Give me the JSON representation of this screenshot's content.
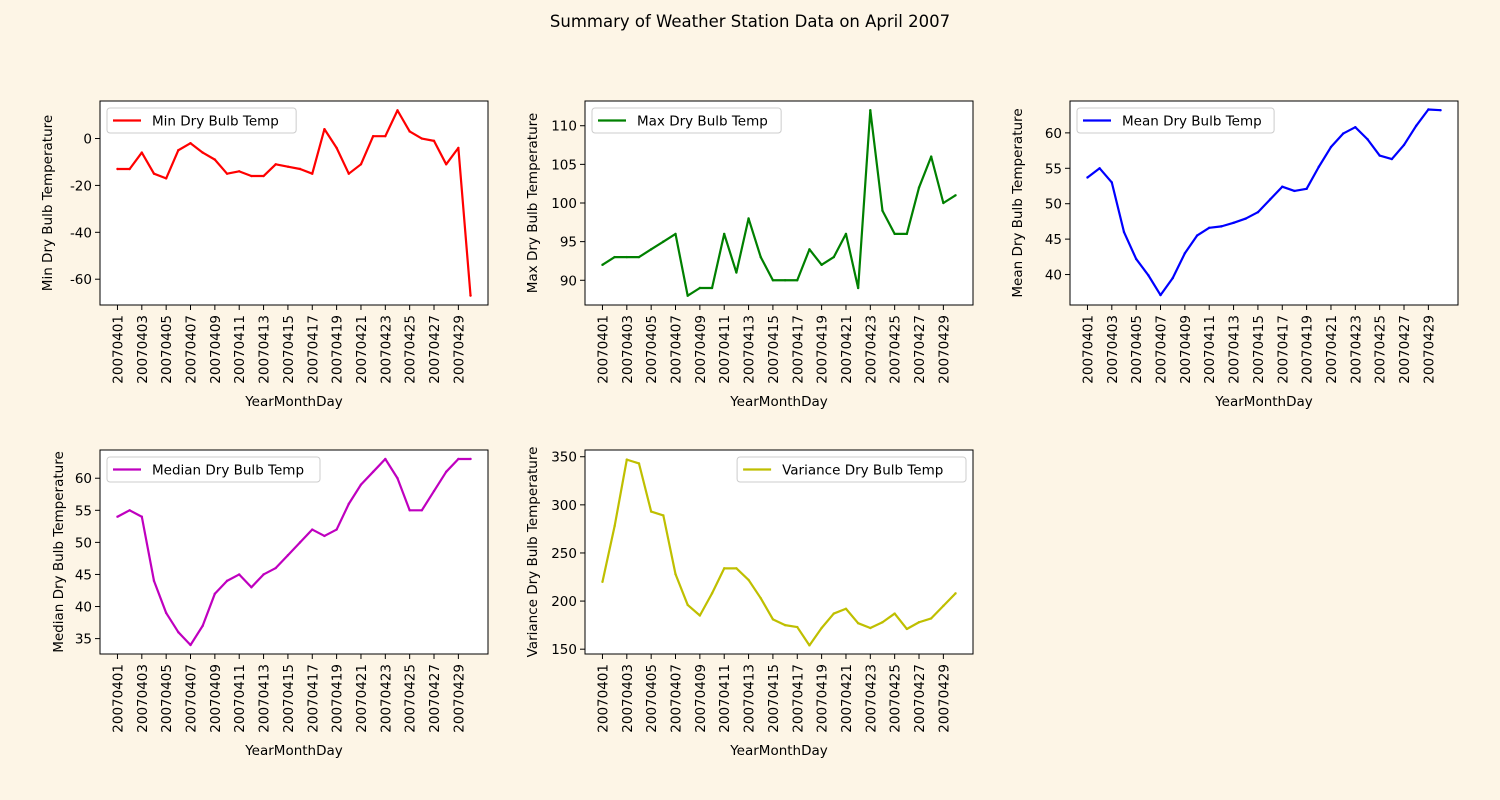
{
  "figure": {
    "title": "Summary of Weather Station Data on April 2007",
    "background": "#fdf5e6"
  },
  "chart_data": [
    {
      "type": "line",
      "xlabel": "YearMonthDay",
      "ylabel": "Min Dry Bulb Temperature",
      "legend": "upper-left",
      "legend_label": "Min Dry Bulb Temp",
      "color": "#ff0000",
      "ylim": [
        -71,
        16
      ],
      "yticks": [
        0,
        -20,
        -40,
        -60
      ],
      "tick_labels": [
        "20070401",
        "20070403",
        "20070405",
        "20070407",
        "20070409",
        "20070411",
        "20070413",
        "20070415",
        "20070417",
        "20070419",
        "20070421",
        "20070423",
        "20070425",
        "20070427",
        "20070429"
      ],
      "values": [
        -13,
        -13,
        -6,
        -15,
        -17,
        -5,
        -2,
        -6,
        -9,
        -15,
        -14,
        -16,
        -16,
        -11,
        -12,
        -13,
        -15,
        4,
        -4,
        -15,
        -11,
        1,
        1,
        12,
        3,
        0,
        -1,
        -11,
        -4,
        -67
      ]
    },
    {
      "type": "line",
      "xlabel": "YearMonthDay",
      "ylabel": "Max Dry Bulb Temperature",
      "legend": "upper-left",
      "legend_label": "Max Dry Bulb Temp",
      "color": "#008000",
      "ylim": [
        86.8,
        113.2
      ],
      "yticks": [
        90,
        95,
        100,
        105,
        110
      ],
      "tick_labels": [
        "20070401",
        "20070403",
        "20070405",
        "20070407",
        "20070409",
        "20070411",
        "20070413",
        "20070415",
        "20070417",
        "20070419",
        "20070421",
        "20070423",
        "20070425",
        "20070427",
        "20070429"
      ],
      "values": [
        92,
        93,
        93,
        93,
        94,
        95,
        96,
        88,
        89,
        89,
        96,
        91,
        98,
        93,
        90,
        90,
        90,
        94,
        92,
        93,
        96,
        89,
        112,
        99,
        96,
        96,
        102,
        106,
        100,
        101
      ]
    },
    {
      "type": "line",
      "xlabel": "YearMonthDay",
      "ylabel": "Mean Dry Bulb Temperature",
      "legend": "upper-left",
      "legend_label": "Mean Dry Bulb Temp",
      "color": "#0000ff",
      "ylim": [
        35.7,
        64.5
      ],
      "yticks": [
        40,
        45,
        50,
        55,
        60
      ],
      "tick_labels": [
        "20070401",
        "20070403",
        "20070405",
        "20070407",
        "20070409",
        "20070411",
        "20070413",
        "20070415",
        "20070417",
        "20070419",
        "20070421",
        "20070423",
        "20070425",
        "20070427",
        "20070429"
      ],
      "values": [
        53.7,
        55,
        53,
        46,
        42.2,
        39.9,
        37.1,
        39.5,
        43,
        45.5,
        46.6,
        46.8,
        47.3,
        47.9,
        48.8,
        50.6,
        52.4,
        51.8,
        52.1,
        55.2,
        58,
        59.9,
        60.8,
        59.1,
        56.8,
        56.3,
        58.3,
        61,
        63.3,
        63.2
      ]
    },
    {
      "type": "line",
      "xlabel": "YearMonthDay",
      "ylabel": "Median Dry Bulb Temperature",
      "legend": "upper-left",
      "legend_label": "Median Dry Bulb Temp",
      "color": "#bf00bf",
      "ylim": [
        32.6,
        64.4
      ],
      "yticks": [
        35,
        40,
        45,
        50,
        55,
        60
      ],
      "tick_labels": [
        "20070401",
        "20070403",
        "20070405",
        "20070407",
        "20070409",
        "20070411",
        "20070413",
        "20070415",
        "20070417",
        "20070419",
        "20070421",
        "20070423",
        "20070425",
        "20070427",
        "20070429"
      ],
      "values": [
        54,
        55,
        54,
        44,
        39,
        36,
        34,
        37,
        42,
        44,
        45,
        43,
        45,
        46,
        48,
        50,
        52,
        51,
        52,
        56,
        59,
        61,
        63,
        60,
        55,
        55,
        58,
        61,
        63,
        63
      ]
    },
    {
      "type": "line",
      "xlabel": "YearMonthDay",
      "ylabel": "Variance Dry Bulb Temperature",
      "legend": "upper-right",
      "legend_label": "Variance Dry Bulb Temp",
      "color": "#bfbf00",
      "ylim": [
        145,
        357
      ],
      "yticks": [
        150,
        200,
        250,
        300,
        350
      ],
      "tick_labels": [
        "20070401",
        "20070403",
        "20070405",
        "20070407",
        "20070409",
        "20070411",
        "20070413",
        "20070415",
        "20070417",
        "20070419",
        "20070421",
        "20070423",
        "20070425",
        "20070427",
        "20070429"
      ],
      "values": [
        220,
        278,
        347,
        343,
        293,
        289,
        228,
        196,
        185,
        208,
        234,
        234,
        222,
        203,
        181,
        175,
        173,
        154,
        172,
        187,
        192,
        177,
        172,
        178,
        187,
        171,
        178,
        182,
        195,
        208
      ]
    }
  ]
}
